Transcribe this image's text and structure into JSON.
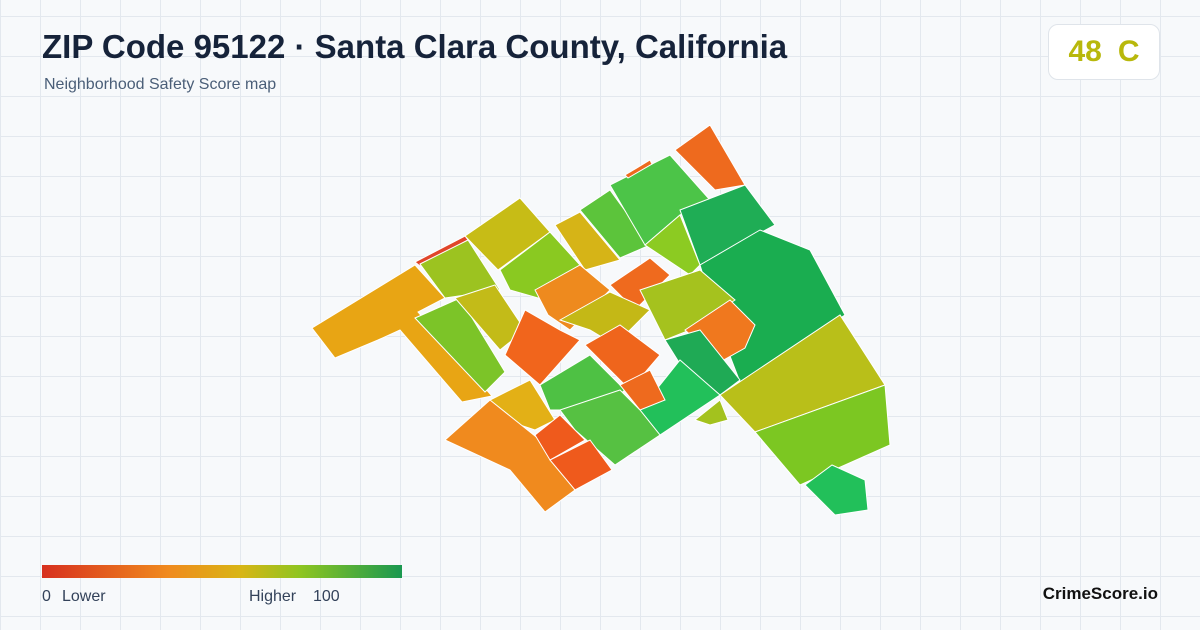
{
  "header": {
    "title": "ZIP Code 95122 · Santa Clara County, California",
    "subtitle": "Neighborhood Safety Score map"
  },
  "score": {
    "value": 48,
    "grade": "C"
  },
  "legend": {
    "min": 0,
    "min_label": "Lower",
    "max_label": "Higher",
    "max": 100
  },
  "brand": "CrimeScore.io"
}
